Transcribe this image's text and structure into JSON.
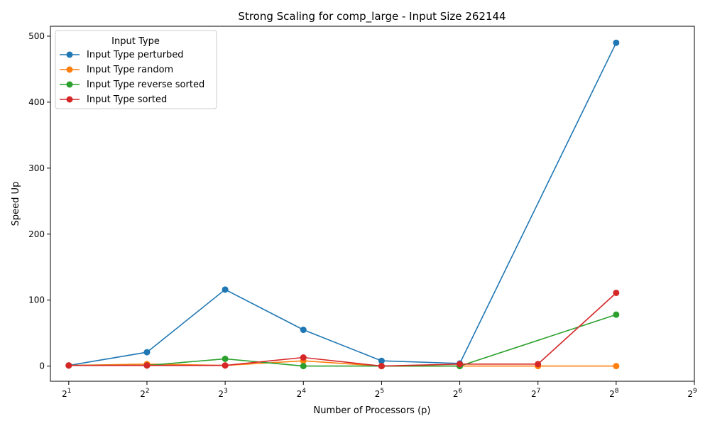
{
  "chart_data": {
    "type": "line",
    "title": "Strong Scaling for comp_large - Input Size 262144",
    "xlabel": "Number of Processors (p)",
    "ylabel": "Speed Up",
    "x_scale": "log2",
    "xlim": [
      1.7,
      512
    ],
    "ylim": [
      -23,
      515
    ],
    "x_ticks": [
      {
        "value": 2,
        "base": "2",
        "exp": "1"
      },
      {
        "value": 4,
        "base": "2",
        "exp": "2"
      },
      {
        "value": 8,
        "base": "2",
        "exp": "3"
      },
      {
        "value": 16,
        "base": "2",
        "exp": "4"
      },
      {
        "value": 32,
        "base": "2",
        "exp": "5"
      },
      {
        "value": 64,
        "base": "2",
        "exp": "6"
      },
      {
        "value": 128,
        "base": "2",
        "exp": "7"
      },
      {
        "value": 256,
        "base": "2",
        "exp": "8"
      },
      {
        "value": 512,
        "base": "2",
        "exp": "9"
      }
    ],
    "y_ticks": [
      {
        "value": 0,
        "label": "0"
      },
      {
        "value": 100,
        "label": "100"
      },
      {
        "value": 200,
        "label": "200"
      },
      {
        "value": 300,
        "label": "300"
      },
      {
        "value": 400,
        "label": "400"
      },
      {
        "value": 500,
        "label": "500"
      }
    ],
    "grid": false,
    "legend": {
      "title": "Input Type",
      "placement": "top-left"
    },
    "series": [
      {
        "name": "Input Type perturbed",
        "color": "#1f77b4",
        "points": [
          [
            2,
            1
          ],
          [
            4,
            21
          ],
          [
            8,
            116
          ],
          [
            16,
            55
          ],
          [
            32,
            8
          ],
          [
            64,
            4
          ],
          [
            256,
            490
          ]
        ]
      },
      {
        "name": "Input Type random",
        "color": "#ff7f0e",
        "points": [
          [
            2,
            1
          ],
          [
            4,
            3
          ],
          [
            8,
            1
          ],
          [
            16,
            8
          ],
          [
            32,
            0
          ],
          [
            64,
            0
          ],
          [
            128,
            0
          ],
          [
            256,
            0
          ]
        ]
      },
      {
        "name": "Input Type reverse sorted",
        "color": "#2ca02c",
        "points": [
          [
            2,
            1
          ],
          [
            4,
            1
          ],
          [
            8,
            11
          ],
          [
            16,
            0
          ],
          [
            32,
            0
          ],
          [
            64,
            0
          ],
          [
            256,
            78
          ]
        ]
      },
      {
        "name": "Input Type sorted",
        "color": "#d62728",
        "points": [
          [
            2,
            1
          ],
          [
            4,
            1
          ],
          [
            8,
            1
          ],
          [
            16,
            13
          ],
          [
            32,
            0
          ],
          [
            64,
            3
          ],
          [
            128,
            3
          ],
          [
            256,
            111
          ]
        ]
      }
    ]
  }
}
